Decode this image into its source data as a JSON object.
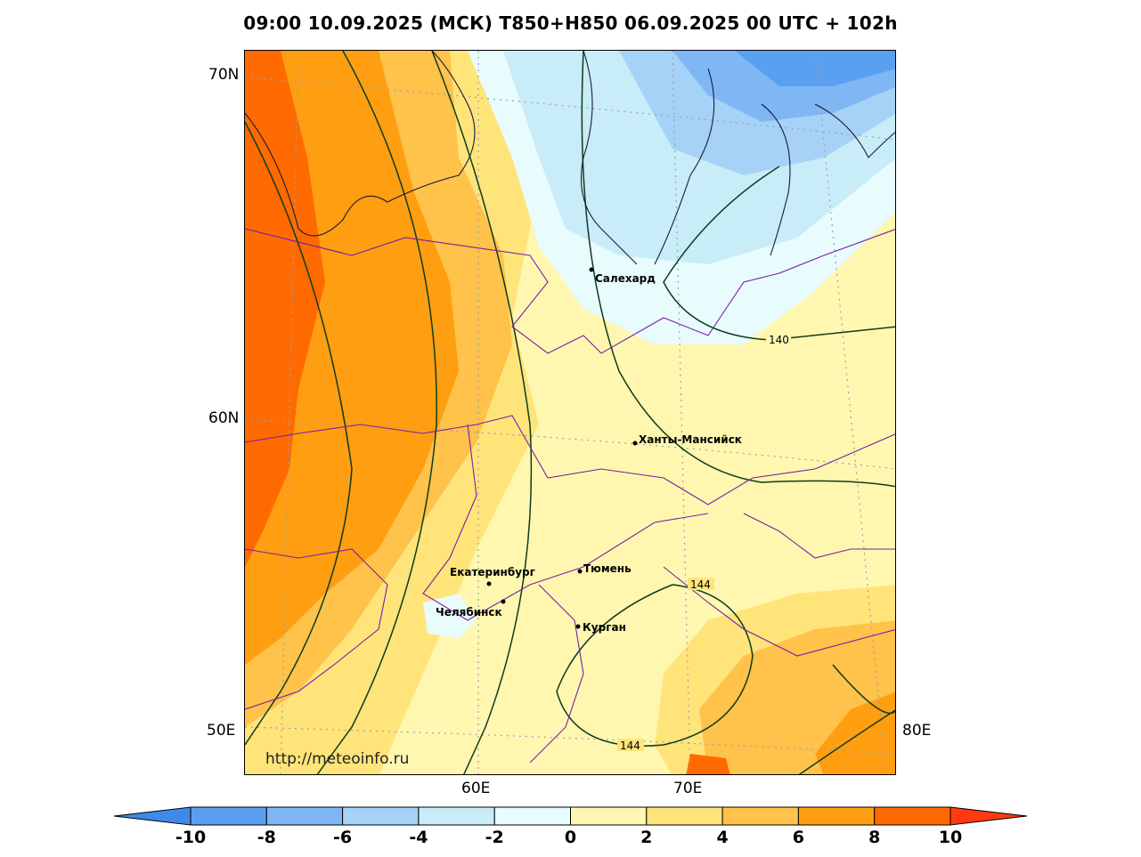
{
  "title": "09:00 10.09.2025 (МСК) T850+H850 06.09.2025 00 UTC + 102h",
  "watermark": "http://meteoinfo.ru",
  "lat_labels": [
    "70N",
    "60N",
    "50E"
  ],
  "lon_labels": [
    "60E",
    "70E",
    "80E"
  ],
  "cities": [
    {
      "name": "Салехард"
    },
    {
      "name": "Ханты-Мансийск"
    },
    {
      "name": "Екатеринбург"
    },
    {
      "name": "Тюмень"
    },
    {
      "name": "Челябинск"
    },
    {
      "name": "Курган"
    }
  ],
  "contour_labels": [
    "140",
    "144",
    "144"
  ],
  "colorbar": {
    "ticks": [
      "-10",
      "-8",
      "-6",
      "-4",
      "-2",
      "0",
      "2",
      "4",
      "6",
      "8",
      "10"
    ],
    "colors": [
      "#3f8ae8",
      "#5aa0f0",
      "#7fb7f5",
      "#a6d2f7",
      "#c8ecf8",
      "#e8fbfd",
      "#fff7b0",
      "#ffe47a",
      "#ffc24a",
      "#ff9e10",
      "#ff6a00",
      "#ff3a10"
    ]
  }
}
